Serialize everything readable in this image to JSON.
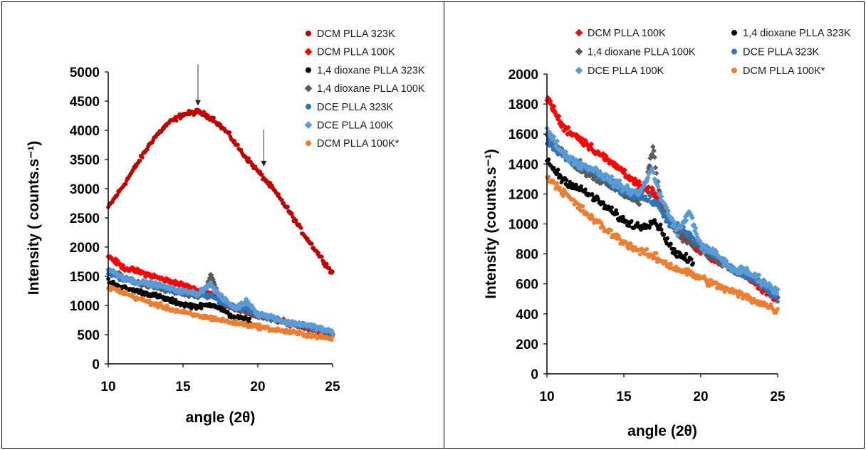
{
  "chart_data": [
    {
      "type": "scatter",
      "xlabel": "angle (2θ)",
      "ylabel": "Intensity ( counts.s⁻¹)",
      "xlim": [
        10,
        25
      ],
      "ylim": [
        0,
        5000
      ],
      "xticks": [
        "10",
        "15",
        "20",
        "25"
      ],
      "yticks": [
        "0",
        "500",
        "1000",
        "1500",
        "2000",
        "2500",
        "3000",
        "3500",
        "4000",
        "4500",
        "5000"
      ],
      "legend_position": "top-right",
      "grid": false,
      "annotations": [
        {
          "type": "arrow",
          "x": 16.0,
          "y_tip": 4420,
          "y_tail": 5130
        },
        {
          "type": "arrow",
          "x": 20.4,
          "y_tip": 3380,
          "y_tail": 4010
        }
      ],
      "series": [
        {
          "name": "DCM PLLA 323K",
          "color": "#c00000",
          "marker": "circle",
          "points": [
            [
              10,
              2680
            ],
            [
              11,
              3050
            ],
            [
              12,
              3450
            ],
            [
              13,
              3850
            ],
            [
              14,
              4120
            ],
            [
              15,
              4270
            ],
            [
              16,
              4320
            ],
            [
              17,
              4200
            ],
            [
              18,
              3950
            ],
            [
              19,
              3600
            ],
            [
              20,
              3300
            ],
            [
              21,
              3000
            ],
            [
              22,
              2650
            ],
            [
              23,
              2250
            ],
            [
              24,
              1900
            ],
            [
              25,
              1550
            ]
          ]
        },
        {
          "name": "DCM PLLA 100K",
          "color": "#ff0000",
          "marker": "diamond",
          "points": [
            [
              10,
              1850
            ],
            [
              11,
              1650
            ],
            [
              12,
              1580
            ],
            [
              13,
              1500
            ],
            [
              14,
              1420
            ],
            [
              15,
              1350
            ],
            [
              16,
              1250
            ],
            [
              17,
              1200
            ],
            [
              18,
              1000
            ],
            [
              19,
              900
            ],
            [
              20,
              820
            ],
            [
              21,
              770
            ],
            [
              22,
              700
            ],
            [
              23,
              650
            ],
            [
              24,
              560
            ],
            [
              25,
              500
            ]
          ]
        },
        {
          "name": "1,4 dioxane PLLA 323K",
          "color": "#000000",
          "marker": "circle",
          "points": [
            [
              10,
              1420
            ],
            [
              11,
              1300
            ],
            [
              12,
              1240
            ],
            [
              13,
              1180
            ],
            [
              14,
              1100
            ],
            [
              15,
              1020
            ],
            [
              16,
              980
            ],
            [
              16.5,
              1000
            ],
            [
              17,
              1020
            ],
            [
              17.5,
              950
            ],
            [
              18,
              850
            ],
            [
              18.5,
              800
            ],
            [
              19,
              770
            ],
            [
              19.5,
              740
            ]
          ]
        },
        {
          "name": "1,4 dioxane PLLA 100K",
          "color": "#595959",
          "marker": "diamond",
          "points": [
            [
              10,
              1600
            ],
            [
              11,
              1480
            ],
            [
              12,
              1380
            ],
            [
              13,
              1320
            ],
            [
              14,
              1260
            ],
            [
              15,
              1200
            ],
            [
              16,
              1150
            ],
            [
              16.5,
              1300
            ],
            [
              16.9,
              1520
            ],
            [
              17.3,
              1200
            ],
            [
              18,
              1000
            ],
            [
              19,
              900
            ],
            [
              20,
              830
            ],
            [
              21,
              760
            ],
            [
              22,
              700
            ],
            [
              23,
              650
            ],
            [
              24,
              600
            ],
            [
              25,
              520
            ]
          ]
        },
        {
          "name": "DCE PLLA 323K",
          "color": "#2e75b6",
          "marker": "circle",
          "points": [
            [
              10,
              1550
            ],
            [
              11,
              1450
            ],
            [
              12,
              1400
            ],
            [
              13,
              1350
            ],
            [
              14,
              1280
            ],
            [
              15,
              1220
            ],
            [
              16,
              1180
            ],
            [
              17,
              1150
            ],
            [
              18,
              1000
            ],
            [
              19,
              950
            ],
            [
              20,
              850
            ],
            [
              21,
              780
            ],
            [
              22,
              700
            ],
            [
              23,
              650
            ],
            [
              24,
              600
            ],
            [
              25,
              500
            ]
          ]
        },
        {
          "name": "DCE PLLA 100K",
          "color": "#5b9bd5",
          "marker": "diamond",
          "points": [
            [
              10,
              1620
            ],
            [
              11,
              1480
            ],
            [
              12,
              1400
            ],
            [
              13,
              1370
            ],
            [
              14,
              1300
            ],
            [
              15,
              1240
            ],
            [
              16,
              1200
            ],
            [
              16.8,
              1370
            ],
            [
              17.5,
              1150
            ],
            [
              18.5,
              950
            ],
            [
              19.3,
              1080
            ],
            [
              20,
              850
            ],
            [
              21,
              800
            ],
            [
              22,
              700
            ],
            [
              23,
              680
            ],
            [
              24,
              620
            ],
            [
              25,
              540
            ]
          ]
        },
        {
          "name": "DCM PLLA 100K*",
          "color": "#ed7d31",
          "marker": "circle",
          "points": [
            [
              10,
              1320
            ],
            [
              11,
              1220
            ],
            [
              12,
              1120
            ],
            [
              13,
              1030
            ],
            [
              14,
              950
            ],
            [
              15,
              880
            ],
            [
              16,
              820
            ],
            [
              17,
              780
            ],
            [
              18,
              720
            ],
            [
              19,
              680
            ],
            [
              20,
              640
            ],
            [
              21,
              590
            ],
            [
              22,
              550
            ],
            [
              23,
              510
            ],
            [
              24,
              470
            ],
            [
              25,
              420
            ]
          ]
        }
      ]
    },
    {
      "type": "scatter",
      "xlabel": "angle (2θ)",
      "ylabel": "Intensity (counts.s⁻¹)",
      "xlim": [
        10,
        25
      ],
      "ylim": [
        0,
        2000
      ],
      "xticks": [
        "10",
        "15",
        "20",
        "25"
      ],
      "yticks": [
        "0",
        "200",
        "400",
        "600",
        "800",
        "1000",
        "1200",
        "1400",
        "1600",
        "1800",
        "2000"
      ],
      "legend_position": "top",
      "grid": false,
      "series": [
        {
          "name": "DCM PLLA 100K",
          "color": "#ff0000",
          "marker": "diamond",
          "points": [
            [
              10,
              1850
            ],
            [
              11,
              1650
            ],
            [
              12,
              1580
            ],
            [
              13,
              1500
            ],
            [
              14,
              1420
            ],
            [
              15,
              1350
            ],
            [
              16,
              1250
            ],
            [
              17,
              1200
            ],
            [
              18,
              1000
            ],
            [
              19,
              900
            ],
            [
              20,
              820
            ],
            [
              21,
              770
            ],
            [
              22,
              700
            ],
            [
              23,
              650
            ],
            [
              24,
              560
            ],
            [
              25,
              500
            ]
          ]
        },
        {
          "name": "1,4 dioxane PLLA 323K",
          "color": "#000000",
          "marker": "circle",
          "points": [
            [
              10,
              1420
            ],
            [
              11,
              1300
            ],
            [
              12,
              1240
            ],
            [
              13,
              1180
            ],
            [
              14,
              1100
            ],
            [
              15,
              1020
            ],
            [
              16,
              980
            ],
            [
              16.5,
              1000
            ],
            [
              17,
              1020
            ],
            [
              17.5,
              950
            ],
            [
              18,
              850
            ],
            [
              18.5,
              800
            ],
            [
              19,
              770
            ],
            [
              19.5,
              740
            ]
          ]
        },
        {
          "name": "1,4 dioxane PLLA 100K",
          "color": "#595959",
          "marker": "diamond",
          "points": [
            [
              10,
              1600
            ],
            [
              11,
              1480
            ],
            [
              12,
              1380
            ],
            [
              13,
              1320
            ],
            [
              14,
              1260
            ],
            [
              15,
              1200
            ],
            [
              16,
              1150
            ],
            [
              16.5,
              1300
            ],
            [
              16.9,
              1520
            ],
            [
              17.3,
              1200
            ],
            [
              18,
              1000
            ],
            [
              19,
              900
            ],
            [
              20,
              830
            ],
            [
              21,
              760
            ],
            [
              22,
              700
            ],
            [
              23,
              650
            ],
            [
              24,
              600
            ],
            [
              25,
              520
            ]
          ]
        },
        {
          "name": "DCE PLLA 323K",
          "color": "#2e75b6",
          "marker": "circle",
          "points": [
            [
              10,
              1550
            ],
            [
              11,
              1450
            ],
            [
              12,
              1400
            ],
            [
              13,
              1350
            ],
            [
              14,
              1280
            ],
            [
              15,
              1220
            ],
            [
              16,
              1180
            ],
            [
              17,
              1150
            ],
            [
              18,
              1000
            ],
            [
              19,
              950
            ],
            [
              20,
              850
            ],
            [
              21,
              780
            ],
            [
              22,
              700
            ],
            [
              23,
              650
            ],
            [
              24,
              600
            ],
            [
              25,
              500
            ]
          ]
        },
        {
          "name": "DCE PLLA 100K",
          "color": "#5b9bd5",
          "marker": "diamond",
          "points": [
            [
              10,
              1620
            ],
            [
              11,
              1480
            ],
            [
              12,
              1400
            ],
            [
              13,
              1370
            ],
            [
              14,
              1300
            ],
            [
              15,
              1240
            ],
            [
              16,
              1200
            ],
            [
              16.8,
              1370
            ],
            [
              17.5,
              1150
            ],
            [
              18.5,
              950
            ],
            [
              19.3,
              1080
            ],
            [
              20,
              850
            ],
            [
              21,
              800
            ],
            [
              22,
              700
            ],
            [
              23,
              680
            ],
            [
              24,
              620
            ],
            [
              25,
              540
            ]
          ]
        },
        {
          "name": "DCM PLLA 100K*",
          "color": "#ed7d31",
          "marker": "circle",
          "points": [
            [
              10,
              1320
            ],
            [
              11,
              1220
            ],
            [
              12,
              1120
            ],
            [
              13,
              1030
            ],
            [
              14,
              950
            ],
            [
              15,
              880
            ],
            [
              16,
              820
            ],
            [
              17,
              780
            ],
            [
              18,
              720
            ],
            [
              19,
              680
            ],
            [
              20,
              640
            ],
            [
              21,
              590
            ],
            [
              22,
              550
            ],
            [
              23,
              510
            ],
            [
              24,
              470
            ],
            [
              25,
              420
            ]
          ]
        }
      ]
    }
  ]
}
